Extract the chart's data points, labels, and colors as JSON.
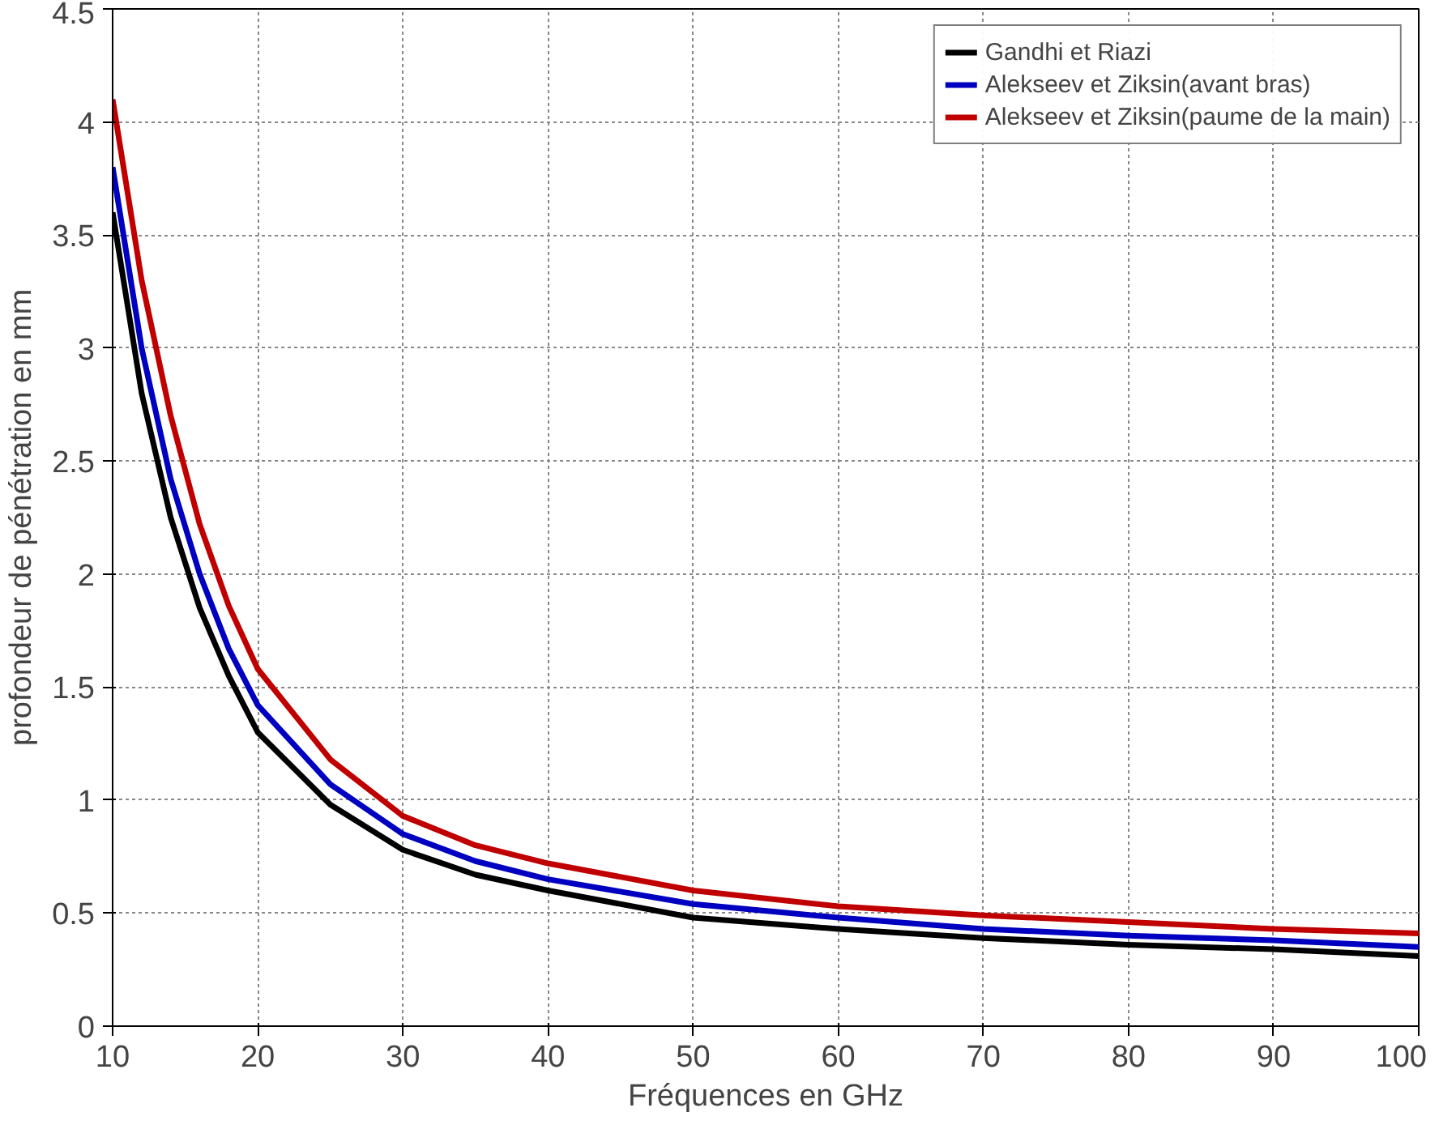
{
  "chart_data": {
    "type": "line",
    "xlabel": "Fréquences en GHz",
    "ylabel": "profondeur de pénétration en mm",
    "x": [
      10,
      12,
      14,
      16,
      18,
      20,
      25,
      30,
      35,
      40,
      50,
      60,
      70,
      80,
      90,
      100
    ],
    "series": [
      {
        "name": "Gandhi et Riazi",
        "color": "#000000",
        "values": [
          3.6,
          2.8,
          2.25,
          1.85,
          1.55,
          1.3,
          0.98,
          0.78,
          0.67,
          0.6,
          0.48,
          0.43,
          0.39,
          0.36,
          0.34,
          0.31
        ]
      },
      {
        "name": "Alekseev et Ziksin(avant bras)",
        "color": "#0000c0",
        "values": [
          3.8,
          3.0,
          2.42,
          2.0,
          1.67,
          1.42,
          1.07,
          0.85,
          0.73,
          0.65,
          0.54,
          0.48,
          0.43,
          0.4,
          0.38,
          0.35
        ]
      },
      {
        "name": "Alekseev et Ziksin(paume de la main)",
        "color": "#c00000",
        "values": [
          4.1,
          3.3,
          2.7,
          2.22,
          1.86,
          1.58,
          1.18,
          0.93,
          0.8,
          0.72,
          0.6,
          0.53,
          0.49,
          0.46,
          0.43,
          0.41
        ]
      }
    ],
    "xlim": [
      10,
      100
    ],
    "xticks": [
      10,
      20,
      30,
      40,
      50,
      60,
      70,
      80,
      90,
      100
    ],
    "ylim": [
      0,
      4.5
    ],
    "yticks": [
      0,
      0.5,
      1,
      1.5,
      2,
      2.5,
      3,
      3.5,
      4,
      4.5
    ],
    "grid": true,
    "legend": "top right",
    "line_style": "solid",
    "marker": "none"
  }
}
